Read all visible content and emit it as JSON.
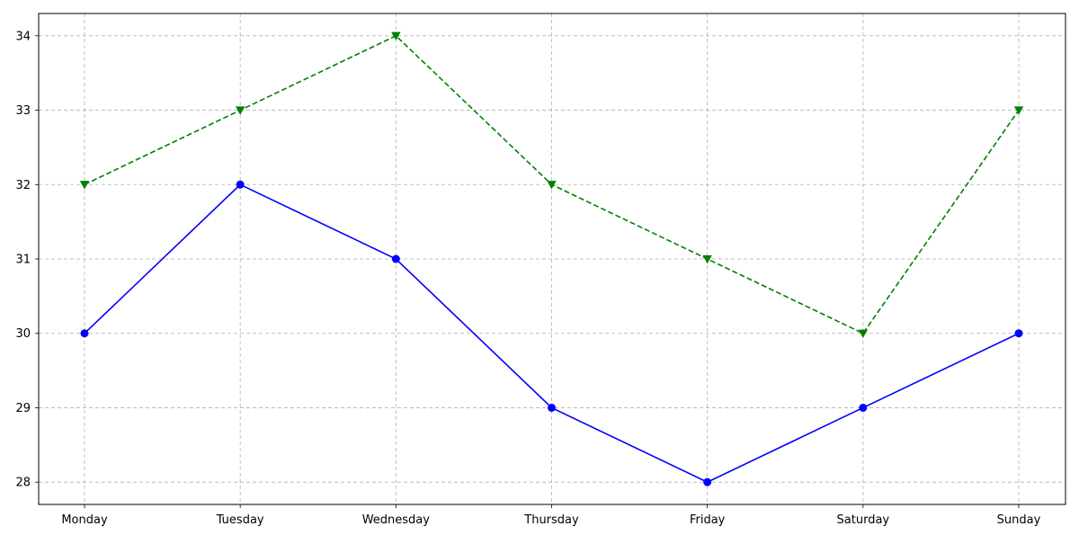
{
  "chart_data": {
    "type": "line",
    "title": "",
    "xlabel": "",
    "ylabel": "",
    "categories": [
      "Monday",
      "Tuesday",
      "Wednesday",
      "Thursday",
      "Friday",
      "Saturday",
      "Sunday"
    ],
    "yticks": [
      28,
      29,
      30,
      31,
      32,
      33,
      34
    ],
    "ylim": [
      27.7,
      34.3
    ],
    "grid": true,
    "series": [
      {
        "values": [
          30,
          32,
          31,
          29,
          28,
          29,
          30
        ],
        "color": "#0000ff",
        "line_style": "solid",
        "marker": "circle"
      },
      {
        "values": [
          32,
          33,
          34,
          32,
          31,
          30,
          33
        ],
        "color": "#008000",
        "line_style": "dashed",
        "marker": "triangle-down"
      }
    ]
  }
}
